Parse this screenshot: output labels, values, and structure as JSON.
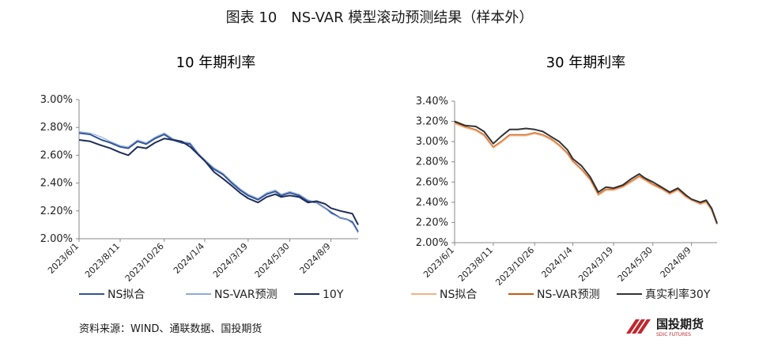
{
  "figure_title": "图表 10　NS-VAR 模型滚动预测结果（样本外）",
  "source": "资料来源：WIND、通联数据、国投期货",
  "logo": {
    "text": "国投期货",
    "subtext": "SDIC FUTURES",
    "color": "#c0282e"
  },
  "chart_data": [
    {
      "type": "line",
      "title": "10 年期利率",
      "x_ticks": [
        "2023/6/1",
        "2023/8/11",
        "2023/10/26",
        "2024/1/4",
        "2024/3/19",
        "2024/5/30",
        "2024/8/9"
      ],
      "y_ticks": [
        "2.00%",
        "2.20%",
        "2.40%",
        "2.60%",
        "2.80%",
        "3.00%"
      ],
      "ylim": [
        2.0,
        3.0
      ],
      "y_unit": "%",
      "grid": false,
      "legend": "bottom",
      "series": [
        {
          "name": "NS拟合",
          "color": "#2f5597",
          "width": 2,
          "x": [
            "2023/6/1",
            "2023/6/20",
            "2023/7/10",
            "2023/7/25",
            "2023/8/11",
            "2023/8/25",
            "2023/9/10",
            "2023/9/25",
            "2023/10/10",
            "2023/10/26",
            "2023/11/10",
            "2023/11/25",
            "2023/12/10",
            "2023/12/25",
            "2024/1/4",
            "2024/1/20",
            "2024/2/5",
            "2024/2/20",
            "2024/3/5",
            "2024/3/19",
            "2024/4/5",
            "2024/4/20",
            "2024/5/5",
            "2024/5/15",
            "2024/5/30",
            "2024/6/15",
            "2024/6/30",
            "2024/7/15",
            "2024/7/30",
            "2024/8/9",
            "2024/8/25",
            "2024/9/5",
            "2024/9/15",
            "2024/9/25"
          ],
          "values": [
            2.76,
            2.75,
            2.71,
            2.69,
            2.66,
            2.65,
            2.7,
            2.68,
            2.72,
            2.75,
            2.71,
            2.69,
            2.68,
            2.6,
            2.56,
            2.5,
            2.46,
            2.4,
            2.35,
            2.31,
            2.28,
            2.32,
            2.34,
            2.31,
            2.33,
            2.31,
            2.27,
            2.26,
            2.22,
            2.19,
            2.15,
            2.14,
            2.12,
            2.05
          ]
        },
        {
          "name": "NS-VAR预测",
          "color": "#8eaadb",
          "width": 1,
          "x": [
            "2023/6/1",
            "2023/6/20",
            "2023/7/10",
            "2023/7/25",
            "2023/8/11",
            "2023/8/25",
            "2023/9/10",
            "2023/9/25",
            "2023/10/10",
            "2023/10/26",
            "2023/11/10",
            "2023/11/25",
            "2023/12/10",
            "2023/12/25",
            "2024/1/4",
            "2024/1/20",
            "2024/2/5",
            "2024/2/20",
            "2024/3/5",
            "2024/3/19",
            "2024/4/5",
            "2024/4/20",
            "2024/5/5",
            "2024/5/15",
            "2024/5/30",
            "2024/6/15",
            "2024/6/30",
            "2024/7/15",
            "2024/7/30",
            "2024/8/9",
            "2024/8/25",
            "2024/9/5",
            "2024/9/15",
            "2024/9/25"
          ],
          "values": [
            2.77,
            2.76,
            2.73,
            2.7,
            2.67,
            2.66,
            2.71,
            2.69,
            2.73,
            2.76,
            2.72,
            2.7,
            2.69,
            2.61,
            2.57,
            2.51,
            2.47,
            2.41,
            2.36,
            2.32,
            2.29,
            2.33,
            2.35,
            2.32,
            2.34,
            2.32,
            2.28,
            2.26,
            2.22,
            2.18,
            2.15,
            2.14,
            2.11,
            2.04
          ]
        },
        {
          "name": "10Y",
          "color": "#1f2d5a",
          "width": 2,
          "x": [
            "2023/6/1",
            "2023/6/20",
            "2023/7/10",
            "2023/7/25",
            "2023/8/11",
            "2023/8/25",
            "2023/9/10",
            "2023/9/25",
            "2023/10/10",
            "2023/10/26",
            "2023/11/10",
            "2023/11/25",
            "2023/12/10",
            "2023/12/25",
            "2024/1/4",
            "2024/1/20",
            "2024/2/5",
            "2024/2/20",
            "2024/3/5",
            "2024/3/19",
            "2024/4/5",
            "2024/4/20",
            "2024/5/5",
            "2024/5/15",
            "2024/5/30",
            "2024/6/15",
            "2024/6/30",
            "2024/7/15",
            "2024/7/30",
            "2024/8/9",
            "2024/8/25",
            "2024/9/5",
            "2024/9/15",
            "2024/9/25"
          ],
          "values": [
            2.71,
            2.7,
            2.67,
            2.65,
            2.62,
            2.6,
            2.66,
            2.65,
            2.69,
            2.72,
            2.71,
            2.7,
            2.66,
            2.6,
            2.56,
            2.48,
            2.43,
            2.38,
            2.33,
            2.29,
            2.26,
            2.3,
            2.32,
            2.3,
            2.31,
            2.3,
            2.26,
            2.27,
            2.25,
            2.22,
            2.2,
            2.19,
            2.18,
            2.1
          ]
        }
      ]
    },
    {
      "type": "line",
      "title": "30 年期利率",
      "x_ticks": [
        "2023/6/1",
        "2023/8/11",
        "2023/10/26",
        "2024/1/4",
        "2024/3/19",
        "2024/5/30",
        "2024/8/9"
      ],
      "y_ticks": [
        "2.00%",
        "2.20%",
        "2.40%",
        "2.60%",
        "2.80%",
        "3.00%",
        "3.20%",
        "3.40%"
      ],
      "ylim": [
        2.0,
        3.4
      ],
      "y_unit": "%",
      "grid": false,
      "legend": "bottom",
      "series": [
        {
          "name": "NS拟合",
          "color": "#f4b183",
          "width": 2,
          "x": [
            "2023/6/1",
            "2023/6/20",
            "2023/7/10",
            "2023/7/25",
            "2023/8/11",
            "2023/8/25",
            "2023/9/10",
            "2023/9/25",
            "2023/10/10",
            "2023/10/26",
            "2023/11/10",
            "2023/11/25",
            "2023/12/10",
            "2023/12/25",
            "2024/1/4",
            "2024/1/20",
            "2024/2/5",
            "2024/2/20",
            "2024/3/5",
            "2024/3/19",
            "2024/4/5",
            "2024/4/20",
            "2024/5/5",
            "2024/5/15",
            "2024/5/30",
            "2024/6/15",
            "2024/6/30",
            "2024/7/15",
            "2024/7/30",
            "2024/8/9",
            "2024/8/25",
            "2024/9/5",
            "2024/9/15",
            "2024/9/25"
          ],
          "values": [
            3.18,
            3.14,
            3.11,
            3.06,
            2.94,
            2.99,
            3.06,
            3.06,
            3.06,
            3.08,
            3.06,
            3.02,
            2.96,
            2.88,
            2.8,
            2.72,
            2.62,
            2.47,
            2.52,
            2.52,
            2.55,
            2.6,
            2.65,
            2.62,
            2.57,
            2.53,
            2.48,
            2.52,
            2.45,
            2.42,
            2.38,
            2.4,
            2.32,
            2.18
          ]
        },
        {
          "name": "NS-VAR预测",
          "color": "#c55a11",
          "width": 1,
          "x": [
            "2023/6/1",
            "2023/6/20",
            "2023/7/10",
            "2023/7/25",
            "2023/8/11",
            "2023/8/25",
            "2023/9/10",
            "2023/9/25",
            "2023/10/10",
            "2023/10/26",
            "2023/11/10",
            "2023/11/25",
            "2023/12/10",
            "2023/12/25",
            "2024/1/4",
            "2024/1/20",
            "2024/2/5",
            "2024/2/20",
            "2024/3/5",
            "2024/3/19",
            "2024/4/5",
            "2024/4/20",
            "2024/5/5",
            "2024/5/15",
            "2024/5/30",
            "2024/6/15",
            "2024/6/30",
            "2024/7/15",
            "2024/7/30",
            "2024/8/9",
            "2024/8/25",
            "2024/9/5",
            "2024/9/15",
            "2024/9/25"
          ],
          "values": [
            3.19,
            3.15,
            3.12,
            3.07,
            2.95,
            3.0,
            3.07,
            3.07,
            3.07,
            3.09,
            3.07,
            3.03,
            2.97,
            2.89,
            2.81,
            2.73,
            2.63,
            2.48,
            2.53,
            2.53,
            2.56,
            2.61,
            2.66,
            2.63,
            2.58,
            2.54,
            2.49,
            2.53,
            2.46,
            2.43,
            2.39,
            2.41,
            2.33,
            2.19
          ]
        },
        {
          "name": "真实利率30Y",
          "color": "#333333",
          "width": 2,
          "x": [
            "2023/6/1",
            "2023/6/20",
            "2023/7/10",
            "2023/7/25",
            "2023/8/11",
            "2023/8/25",
            "2023/9/10",
            "2023/9/25",
            "2023/10/10",
            "2023/10/26",
            "2023/11/10",
            "2023/11/25",
            "2023/12/10",
            "2023/12/25",
            "2024/1/4",
            "2024/1/20",
            "2024/2/5",
            "2024/2/20",
            "2024/3/5",
            "2024/3/19",
            "2024/4/5",
            "2024/4/20",
            "2024/5/5",
            "2024/5/15",
            "2024/5/30",
            "2024/6/15",
            "2024/6/30",
            "2024/7/15",
            "2024/7/30",
            "2024/8/9",
            "2024/8/25",
            "2024/9/5",
            "2024/9/15",
            "2024/9/25"
          ],
          "values": [
            3.2,
            3.16,
            3.15,
            3.1,
            2.98,
            3.05,
            3.12,
            3.12,
            3.13,
            3.12,
            3.1,
            3.05,
            3.0,
            2.92,
            2.83,
            2.76,
            2.65,
            2.5,
            2.55,
            2.54,
            2.57,
            2.63,
            2.68,
            2.64,
            2.6,
            2.55,
            2.5,
            2.54,
            2.47,
            2.43,
            2.4,
            2.42,
            2.34,
            2.19
          ]
        }
      ]
    }
  ]
}
